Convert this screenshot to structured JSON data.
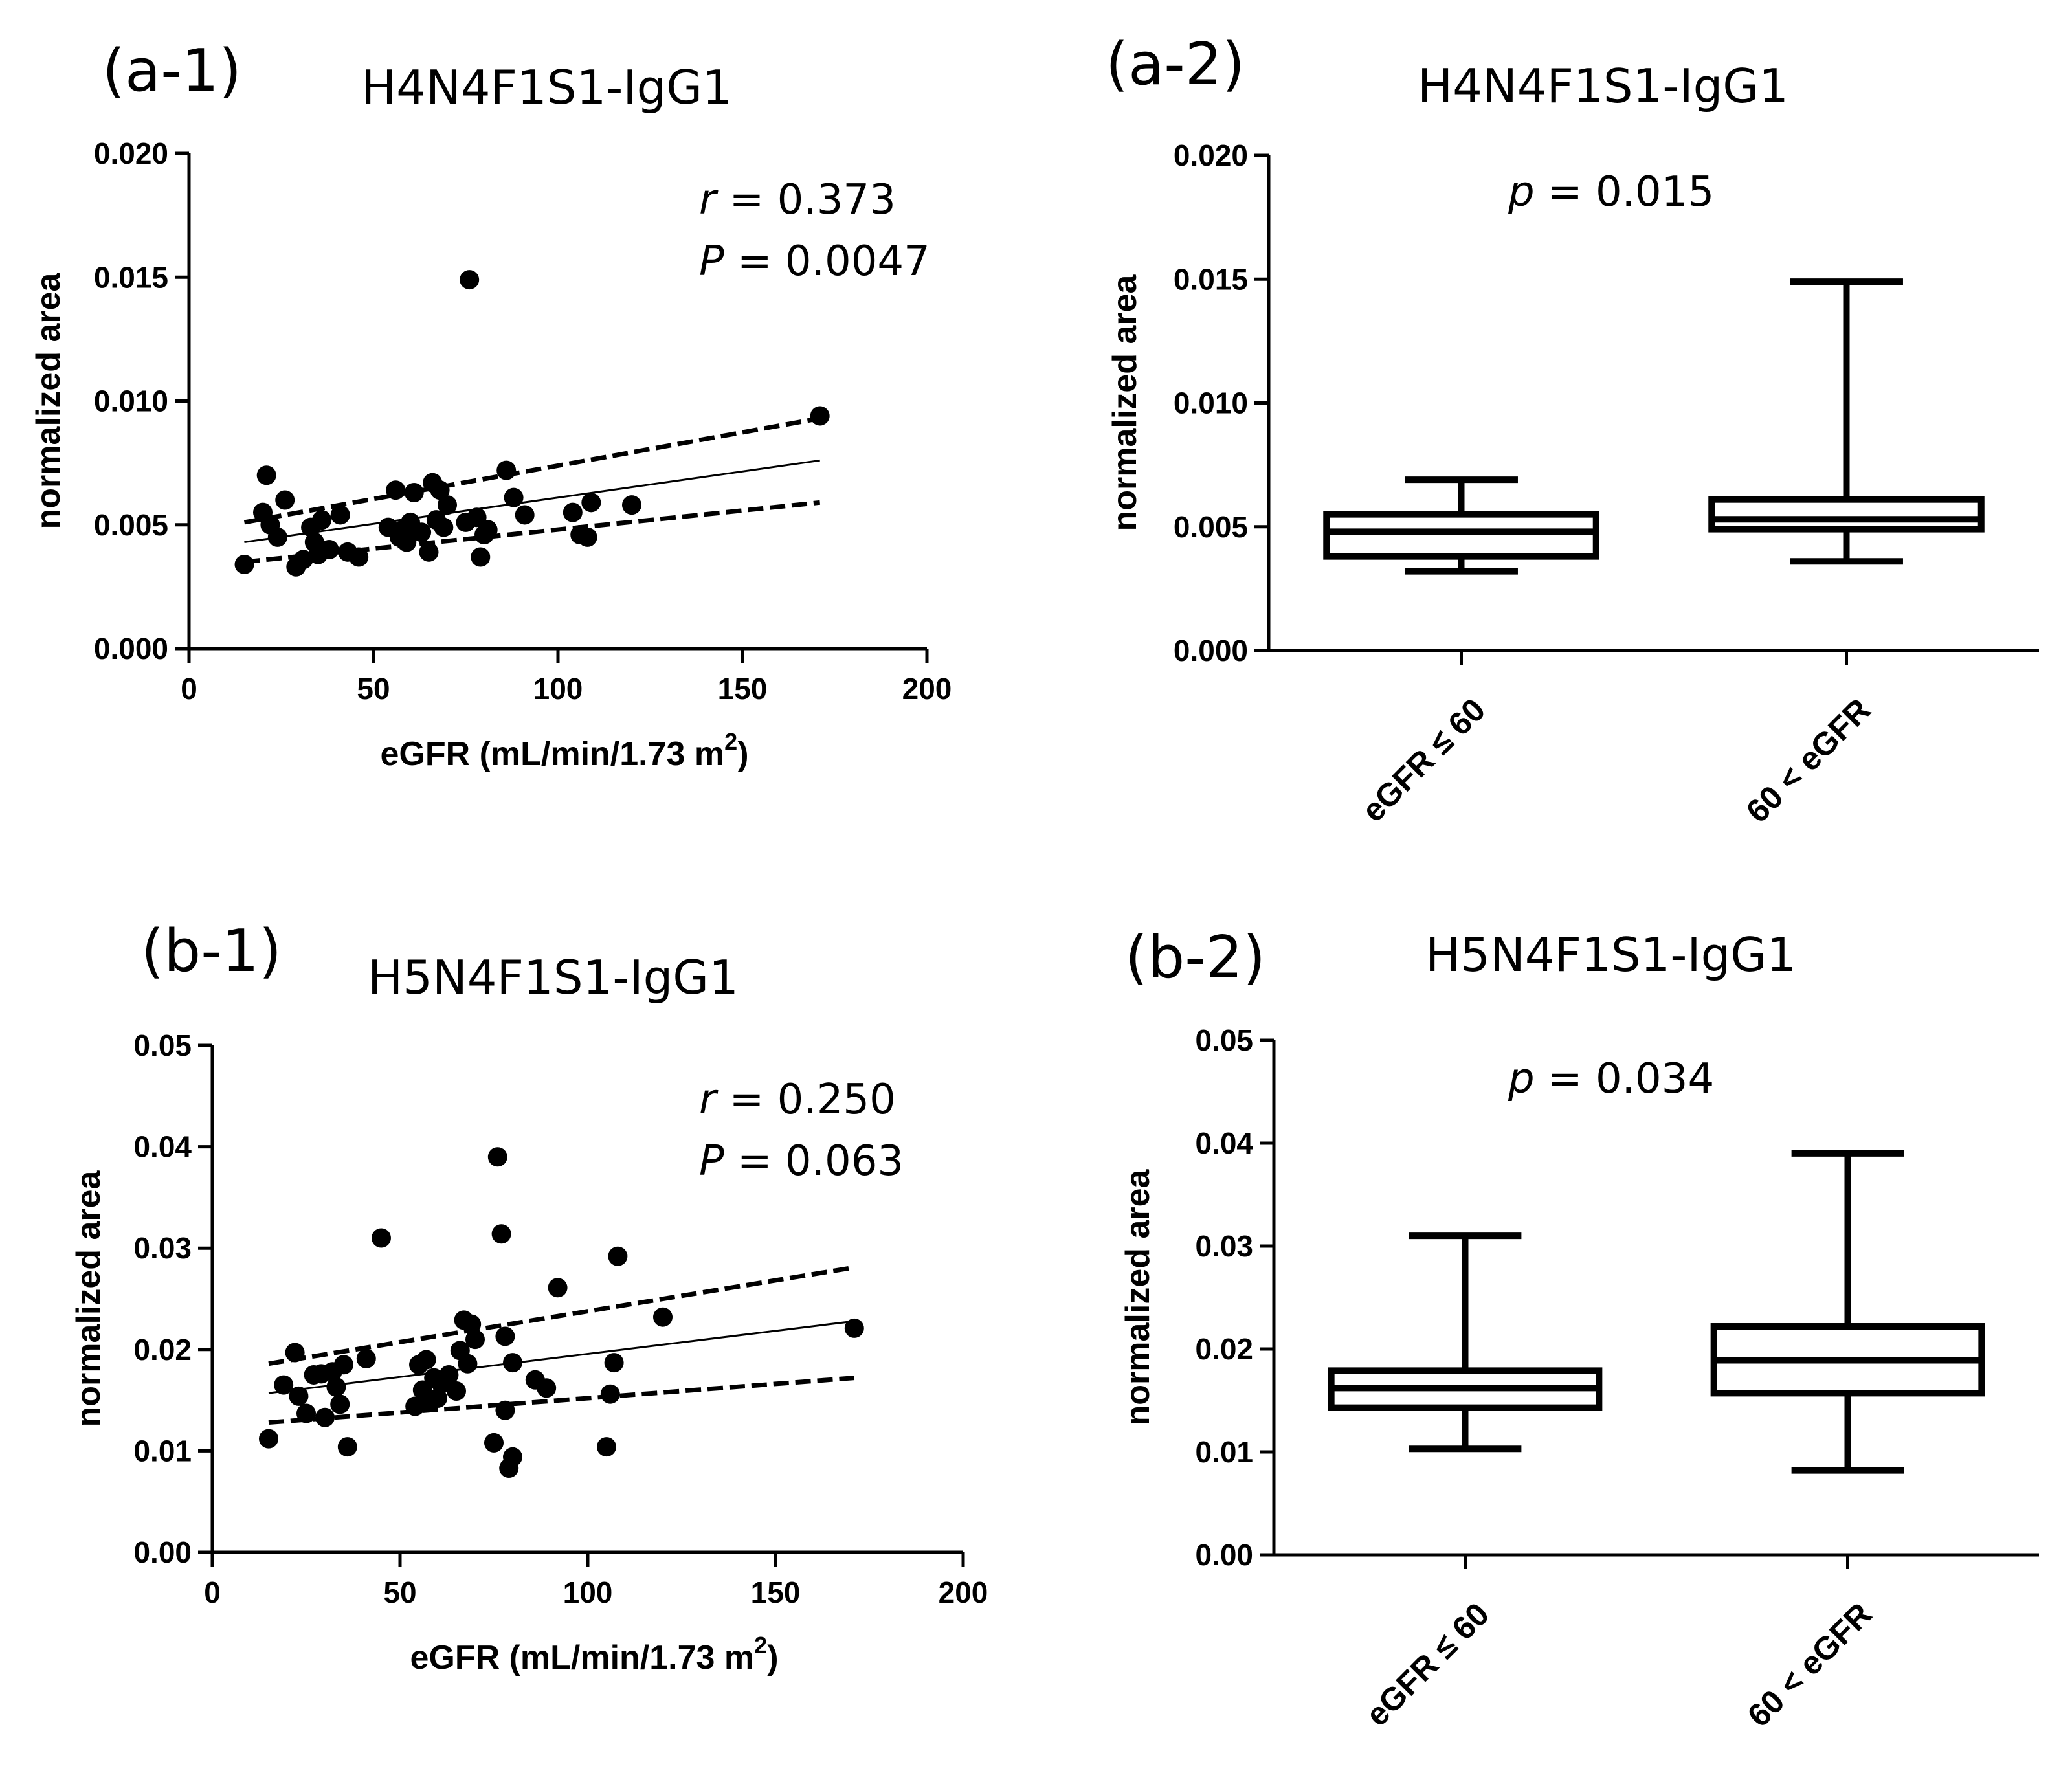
{
  "chart_data": [
    {
      "id": "a1",
      "type": "scatter",
      "panel_label": "(a-1)",
      "title": "H4N4F1S1-IgG1",
      "xlabel_main": "eGFR (mL/min/1.73 m",
      "xlabel_sup": "2",
      "xlabel_close": ")",
      "ylabel": "normalized area",
      "xlim": [
        0,
        200
      ],
      "ylim": [
        0,
        0.02
      ],
      "xticks": [
        0,
        50,
        100,
        150,
        200
      ],
      "xtick_labels": [
        "0",
        "50",
        "100",
        "150",
        "200"
      ],
      "yticks": [
        0,
        0.005,
        0.01,
        0.015,
        0.02
      ],
      "ytick_labels": [
        "0.000",
        "0.005",
        "0.010",
        "0.015",
        "0.020"
      ],
      "stat_lines": [
        {
          "sym": "r",
          "rest": " = 0.373"
        },
        {
          "sym": "P",
          "rest": " = 0.0047"
        }
      ],
      "fit": {
        "x": [
          15,
          171
        ],
        "y": [
          0.0043,
          0.0076
        ]
      },
      "ci_upper": {
        "x": [
          15,
          171
        ],
        "y": [
          0.0051,
          0.0093
        ]
      },
      "ci_lower": {
        "x": [
          15,
          171
        ],
        "y": [
          0.0035,
          0.0059
        ]
      },
      "points": [
        [
          15,
          0.0034
        ],
        [
          20,
          0.0055
        ],
        [
          21,
          0.007
        ],
        [
          22,
          0.005
        ],
        [
          24,
          0.0045
        ],
        [
          26,
          0.006
        ],
        [
          29,
          0.0033
        ],
        [
          31,
          0.0036
        ],
        [
          33,
          0.0049
        ],
        [
          34,
          0.0043
        ],
        [
          35,
          0.0038
        ],
        [
          36,
          0.0052
        ],
        [
          38,
          0.004
        ],
        [
          41,
          0.0054
        ],
        [
          43,
          0.0039
        ],
        [
          46,
          0.0037
        ],
        [
          54,
          0.0049
        ],
        [
          56,
          0.0064
        ],
        [
          57,
          0.0045
        ],
        [
          58,
          0.0048
        ],
        [
          59,
          0.0043
        ],
        [
          60,
          0.0051
        ],
        [
          61,
          0.0063
        ],
        [
          63,
          0.0047
        ],
        [
          65,
          0.0039
        ],
        [
          66,
          0.0067
        ],
        [
          67,
          0.0052
        ],
        [
          68,
          0.0064
        ],
        [
          69,
          0.0049
        ],
        [
          70,
          0.0058
        ],
        [
          75,
          0.0051
        ],
        [
          76,
          0.0149
        ],
        [
          78,
          0.0053
        ],
        [
          79,
          0.0037
        ],
        [
          80,
          0.0046
        ],
        [
          81,
          0.0048
        ],
        [
          86,
          0.0072
        ],
        [
          88,
          0.0061
        ],
        [
          91,
          0.0054
        ],
        [
          104,
          0.0055
        ],
        [
          106,
          0.0046
        ],
        [
          108,
          0.0045
        ],
        [
          109,
          0.0059
        ],
        [
          120,
          0.0058
        ],
        [
          171,
          0.0094
        ]
      ]
    },
    {
      "id": "a2",
      "type": "box",
      "panel_label": "(a-2)",
      "title": "H4N4F1S1-IgG1",
      "ylabel": "normalized area",
      "ylim": [
        0,
        0.02
      ],
      "yticks": [
        0,
        0.005,
        0.01,
        0.015,
        0.02
      ],
      "ytick_labels": [
        "0.000",
        "0.005",
        "0.010",
        "0.015",
        "0.020"
      ],
      "stat_lines": [
        {
          "sym": "p",
          "rest": " = 0.015"
        }
      ],
      "categories": [
        "eGFR ≤ 60",
        "60 < eGFR"
      ],
      "boxes": [
        {
          "min": 0.0032,
          "q1": 0.0038,
          "median": 0.0048,
          "q3": 0.0055,
          "max": 0.0069
        },
        {
          "min": 0.0036,
          "q1": 0.0049,
          "median": 0.0053,
          "q3": 0.0061,
          "max": 0.0149
        }
      ]
    },
    {
      "id": "b1",
      "type": "scatter",
      "panel_label": "(b-1)",
      "title": "H5N4F1S1-IgG1",
      "xlabel_main": "eGFR (mL/min/1.73 m",
      "xlabel_sup": "2",
      "xlabel_close": ")",
      "ylabel": "normalized area",
      "xlim": [
        0,
        200
      ],
      "ylim": [
        0,
        0.05
      ],
      "xticks": [
        0,
        50,
        100,
        150,
        200
      ],
      "xtick_labels": [
        "0",
        "50",
        "100",
        "150",
        "200"
      ],
      "yticks": [
        0,
        0.01,
        0.02,
        0.03,
        0.04,
        0.05
      ],
      "ytick_labels": [
        "0.00",
        "0.01",
        "0.02",
        "0.03",
        "0.04",
        "0.05"
      ],
      "stat_lines": [
        {
          "sym": "r",
          "rest": " = 0.250"
        },
        {
          "sym": "P",
          "rest": " = 0.063"
        }
      ],
      "fit": {
        "x": [
          15,
          171
        ],
        "y": [
          0.0157,
          0.0228
        ]
      },
      "ci_upper": {
        "x": [
          15,
          171
        ],
        "y": [
          0.0186,
          0.0281
        ]
      },
      "ci_lower": {
        "x": [
          15,
          171
        ],
        "y": [
          0.0128,
          0.0172
        ]
      },
      "points": [
        [
          15,
          0.0112
        ],
        [
          19,
          0.0165
        ],
        [
          22,
          0.0197
        ],
        [
          23,
          0.0154
        ],
        [
          25,
          0.0137
        ],
        [
          27,
          0.0175
        ],
        [
          29,
          0.0176
        ],
        [
          30,
          0.0133
        ],
        [
          32,
          0.0178
        ],
        [
          33,
          0.0163
        ],
        [
          34,
          0.0146
        ],
        [
          35,
          0.0185
        ],
        [
          36,
          0.0104
        ],
        [
          41,
          0.0191
        ],
        [
          45,
          0.031
        ],
        [
          54,
          0.0144
        ],
        [
          55,
          0.0185
        ],
        [
          56,
          0.016
        ],
        [
          57,
          0.019
        ],
        [
          58,
          0.0148
        ],
        [
          59,
          0.0172
        ],
        [
          60,
          0.0152
        ],
        [
          61,
          0.0166
        ],
        [
          63,
          0.0175
        ],
        [
          65,
          0.0159
        ],
        [
          66,
          0.0199
        ],
        [
          67,
          0.0229
        ],
        [
          68,
          0.0186
        ],
        [
          69,
          0.0225
        ],
        [
          70,
          0.021
        ],
        [
          75,
          0.0108
        ],
        [
          76,
          0.039
        ],
        [
          77,
          0.0314
        ],
        [
          78,
          0.0213
        ],
        [
          78,
          0.014
        ],
        [
          79,
          0.0083
        ],
        [
          80,
          0.0094
        ],
        [
          80,
          0.0187
        ],
        [
          86,
          0.017
        ],
        [
          89,
          0.0162
        ],
        [
          92,
          0.0261
        ],
        [
          105,
          0.0104
        ],
        [
          106,
          0.0156
        ],
        [
          107,
          0.0187
        ],
        [
          108,
          0.0292
        ],
        [
          120,
          0.0232
        ],
        [
          171,
          0.0221
        ]
      ]
    },
    {
      "id": "b2",
      "type": "box",
      "panel_label": "(b-2)",
      "title": "H5N4F1S1-IgG1",
      "ylabel": "normalized area",
      "ylim": [
        0,
        0.05
      ],
      "yticks": [
        0,
        0.01,
        0.02,
        0.03,
        0.04,
        0.05
      ],
      "ytick_labels": [
        "0.00",
        "0.01",
        "0.02",
        "0.03",
        "0.04",
        "0.05"
      ],
      "stat_lines": [
        {
          "sym": "p",
          "rest": " = 0.034"
        }
      ],
      "categories": [
        "eGFR ≤ 60",
        "60 < eGFR"
      ],
      "boxes": [
        {
          "min": 0.0103,
          "q1": 0.0143,
          "median": 0.0162,
          "q3": 0.0179,
          "max": 0.031
        },
        {
          "min": 0.0082,
          "q1": 0.0157,
          "median": 0.0189,
          "q3": 0.0222,
          "max": 0.039
        }
      ]
    }
  ]
}
